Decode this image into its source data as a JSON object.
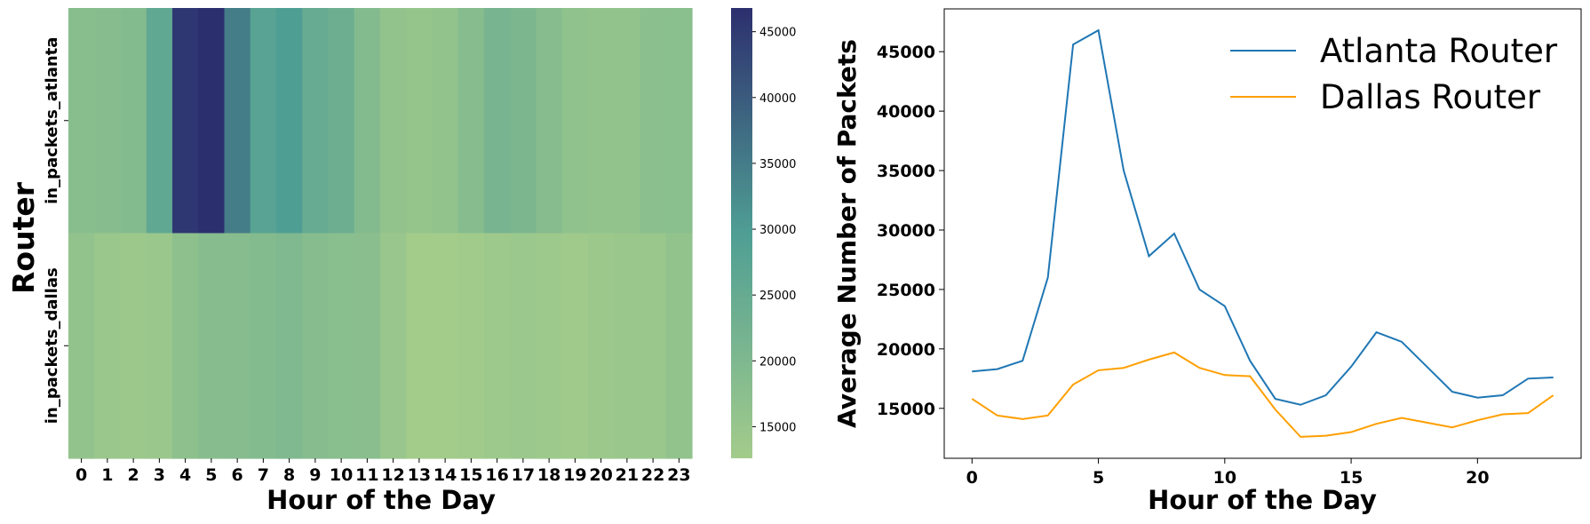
{
  "chart_data": [
    {
      "type": "heatmap",
      "xlabel": "Hour of the Day",
      "ylabel": "Router",
      "x": [
        "0",
        "1",
        "2",
        "3",
        "4",
        "5",
        "6",
        "7",
        "8",
        "9",
        "10",
        "11",
        "12",
        "13",
        "14",
        "15",
        "16",
        "17",
        "18",
        "19",
        "20",
        "21",
        "22",
        "23"
      ],
      "rows": [
        "in_packets_atlanta",
        "in_packets_dallas"
      ],
      "values": [
        [
          18100,
          18300,
          19000,
          26000,
          45600,
          46800,
          35000,
          27800,
          29700,
          25000,
          23600,
          19000,
          15800,
          15300,
          16100,
          18500,
          21400,
          20600,
          18500,
          16400,
          15900,
          16100,
          17500,
          17600
        ],
        [
          15800,
          14400,
          14100,
          14400,
          17000,
          18200,
          18400,
          19100,
          19700,
          18400,
          17800,
          17700,
          14900,
          12600,
          12700,
          13000,
          13700,
          14200,
          13800,
          13400,
          14000,
          14500,
          14600,
          16100
        ]
      ],
      "colorbar": {
        "min": 12600,
        "max": 46800,
        "ticks": [
          15000,
          20000,
          25000,
          30000,
          35000,
          40000,
          45000
        ],
        "tick_labels": [
          "15000",
          "20000",
          "25000",
          "30000",
          "35000",
          "40000",
          "45000"
        ]
      },
      "colors": {
        "low": "#a3cc8b",
        "mid": "#4f9e94",
        "high": "#2c2f6e"
      }
    },
    {
      "type": "line",
      "xlabel": "Hour of the Day",
      "ylabel": "Average Number of Packets",
      "x": [
        0,
        1,
        2,
        3,
        4,
        5,
        6,
        7,
        8,
        9,
        10,
        11,
        12,
        13,
        14,
        15,
        16,
        17,
        18,
        19,
        20,
        21,
        22,
        23
      ],
      "xlim": [
        -1.1,
        24.1
      ],
      "ylim": [
        10800,
        48600
      ],
      "xticks": [
        0,
        5,
        10,
        15,
        20
      ],
      "xtick_labels": [
        "0",
        "5",
        "10",
        "15",
        "20"
      ],
      "yticks": [
        15000,
        20000,
        25000,
        30000,
        35000,
        40000,
        45000
      ],
      "ytick_labels": [
        "15000",
        "20000",
        "25000",
        "30000",
        "35000",
        "40000",
        "45000"
      ],
      "legend_position": "top-right",
      "series": [
        {
          "name": "Atlanta Router",
          "color": "#1f77b4",
          "values": [
            18100,
            18300,
            19000,
            26000,
            45600,
            46800,
            35000,
            27800,
            29700,
            25000,
            23600,
            19000,
            15800,
            15300,
            16100,
            18500,
            21400,
            20600,
            18500,
            16400,
            15900,
            16100,
            17500,
            17600
          ]
        },
        {
          "name": "Dallas Router",
          "color": "#ff9f00",
          "values": [
            15800,
            14400,
            14100,
            14400,
            17000,
            18200,
            18400,
            19100,
            19700,
            18400,
            17800,
            17700,
            14900,
            12600,
            12700,
            13000,
            13700,
            14200,
            13800,
            13400,
            14000,
            14500,
            14600,
            16100
          ]
        }
      ]
    }
  ]
}
